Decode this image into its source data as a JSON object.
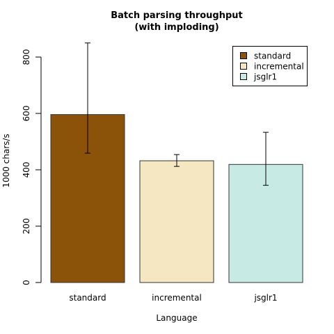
{
  "chart_data": {
    "type": "bar",
    "title_lines": [
      "Batch parsing throughput",
      "(with imploding)"
    ],
    "xlabel": "Language",
    "ylabel": "1000 chars/s",
    "categories": [
      "standard",
      "incremental",
      "jsglr1"
    ],
    "values": [
      596,
      432,
      419
    ],
    "error_bars": [
      {
        "low": 459,
        "high": 850
      },
      {
        "low": 412,
        "high": 454
      },
      {
        "low": 345,
        "high": 533
      }
    ],
    "colors": [
      "#8B5209",
      "#F5E7C2",
      "#C8EAE4"
    ],
    "ylim": [
      0,
      850
    ],
    "yticks": [
      0,
      200,
      400,
      600,
      800
    ],
    "legend": {
      "placement": "top-right",
      "entries": [
        "standard",
        "incremental",
        "jsglr1"
      ]
    },
    "grid": false
  }
}
